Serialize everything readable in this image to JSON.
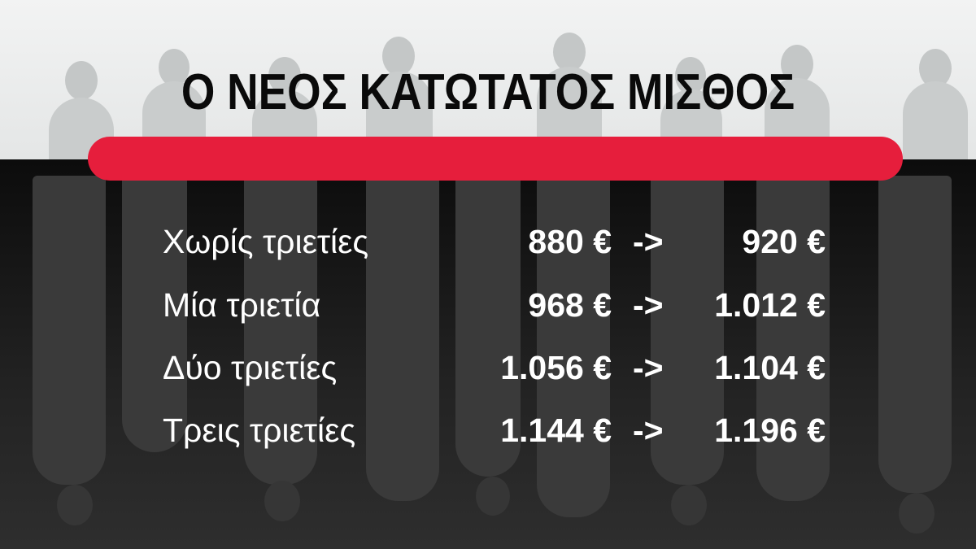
{
  "title": "Ο ΝΕΟΣ ΚΑΤΩΤΑΤΟΣ ΜΙΣΘΟΣ",
  "colors": {
    "accent_bar": "#e61e3c",
    "text_title": "#0a0a0a",
    "text_rows": "#ffffff"
  },
  "rows": [
    {
      "label": "Χωρίς τριετίες",
      "old": "880 €",
      "arrow": "->",
      "new": "920 €"
    },
    {
      "label": "Μία τριετία",
      "old": "968 €",
      "arrow": "->",
      "new": "1.012 €"
    },
    {
      "label": "Δύο τριετίες",
      "old": "1.056 €",
      "arrow": "->",
      "new": "1.104 €"
    },
    {
      "label": "Τρεις τριετίες",
      "old": "1.144 €",
      "arrow": "->",
      "new": "1.196 €"
    }
  ]
}
